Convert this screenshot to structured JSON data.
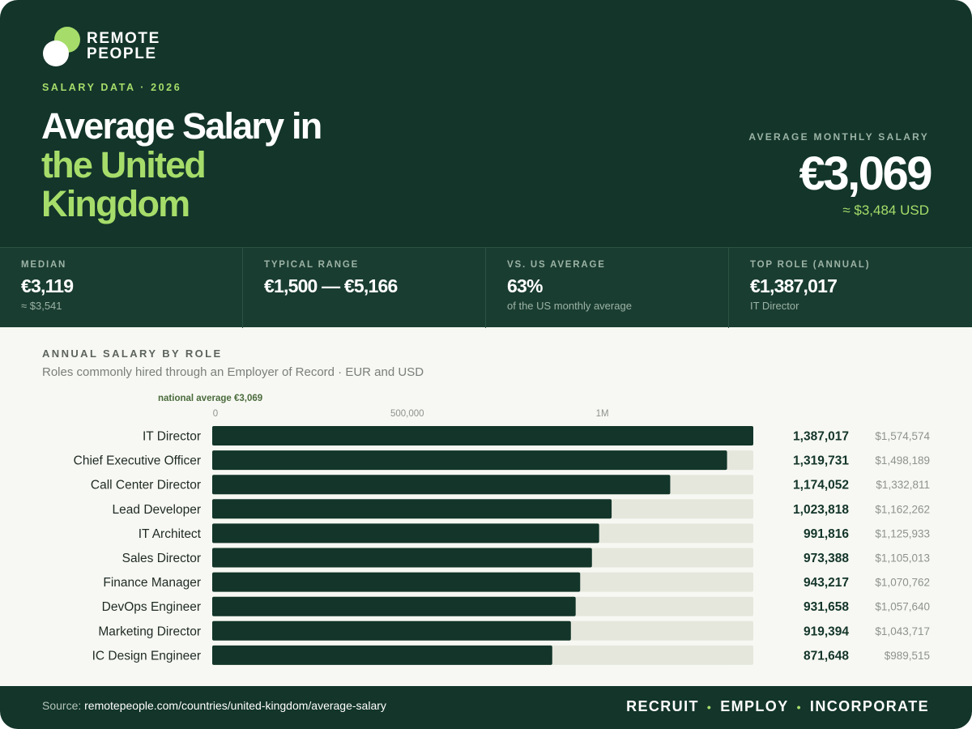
{
  "brand": {
    "line1": "REMOTE",
    "line2": "PEOPLE"
  },
  "eyebrow": "SALARY DATA · 2026",
  "title": {
    "line1": "Average Salary in",
    "line2": "the United",
    "line3": "Kingdom"
  },
  "headline_kpi": {
    "label": "AVERAGE MONTHLY SALARY",
    "value": "€3,069",
    "usd": "≈ $3,484 USD"
  },
  "stats": [
    {
      "label": "MEDIAN",
      "value": "€3,119",
      "sub": "≈ $3,541"
    },
    {
      "label": "TYPICAL RANGE",
      "value": "€1,500 — €5,166",
      "sub": ""
    },
    {
      "label": "VS. US AVERAGE",
      "value": "63%",
      "sub": "of the US monthly average"
    },
    {
      "label": "TOP ROLE (ANNUAL)",
      "value": "€1,387,017",
      "sub": "IT Director"
    }
  ],
  "section": {
    "title": "ANNUAL SALARY BY ROLE",
    "subtitle": "Roles commonly hired through an Employer of Record · EUR and USD"
  },
  "chart_data": {
    "type": "bar",
    "orientation": "horizontal",
    "categories": [
      "IT Director",
      "Chief Executive Officer",
      "Call Center Director",
      "Lead Developer",
      "IT Architect",
      "Sales Director",
      "Finance Manager",
      "DevOps Engineer",
      "Marketing Director",
      "IC Design Engineer"
    ],
    "series": [
      {
        "values": [
          1387017,
          1319731,
          1174052,
          1023818,
          991816,
          973388,
          943217,
          931658,
          919394,
          871648
        ]
      }
    ],
    "value_labels": [
      "1,387,017",
      "1,319,731",
      "1,174,052",
      "1,023,818",
      "991,816",
      "973,388",
      "943,217",
      "931,658",
      "919,394",
      "871,648"
    ],
    "usd_labels": [
      "$1,574,574",
      "$1,498,189",
      "$1,332,811",
      "$1,162,262",
      "$1,125,933",
      "$1,105,013",
      "$1,070,762",
      "$1,057,640",
      "$1,043,717",
      "$989,515"
    ],
    "xlim": [
      0,
      1387017
    ],
    "xticks": [
      {
        "value": 0,
        "label": "0"
      },
      {
        "value": 500000,
        "label": "500,000"
      },
      {
        "value": 1000000,
        "label": "1M"
      }
    ],
    "annotation": {
      "text": "national average €3,069",
      "value": 3069
    },
    "colors": {
      "bar": "#13352a",
      "track": "#e5e7dd",
      "value_text": "#13352a",
      "usd_text": "#8e938d",
      "label_text": "#1f2a24",
      "tick_text": "#8e938d"
    }
  },
  "footer": {
    "source_label": "Source:",
    "source_url": "remotepeople.com/countries/united-kingdom/average-salary",
    "tagline": [
      "RECRUIT",
      "EMPLOY",
      "INCORPORATE"
    ]
  },
  "colors": {
    "primary": "#13352a",
    "accent": "#a6dd6a",
    "band": "#1a3d31"
  }
}
